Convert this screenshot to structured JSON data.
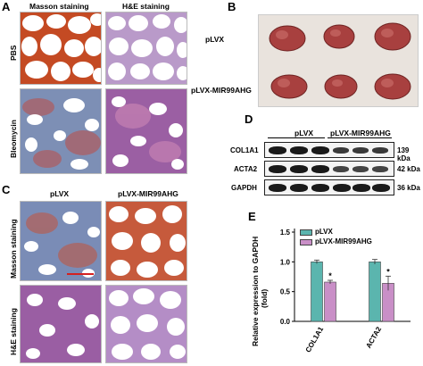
{
  "panels": {
    "A": {
      "letter": "A",
      "col_labels": [
        "Masson staining",
        "H&E staining"
      ],
      "row_labels": [
        "PBS",
        "Bleomycin"
      ]
    },
    "B": {
      "letter": "B",
      "row_labels": [
        "pLVX",
        "pLVX-MIR99AHG"
      ]
    },
    "C": {
      "letter": "C",
      "col_labels": [
        "pLVX",
        "pLVX-MIR99AHG"
      ],
      "row_labels": [
        "Masson staining",
        "H&E staining"
      ]
    },
    "D": {
      "letter": "D",
      "group_labels": [
        "pLVX",
        "pLVX-MIR99AHG"
      ],
      "proteins": [
        "COL1A1",
        "ACTA2",
        "GAPDH"
      ],
      "sizes": [
        "139 kDa",
        "42 kDa",
        "36 kDa"
      ]
    },
    "E": {
      "letter": "E",
      "ylabel_line1": "Relative expression to GAPDH",
      "ylabel_line2": "(fold)"
    }
  },
  "chart_data": {
    "type": "bar",
    "categories": [
      "COL1A1",
      "ACTA2"
    ],
    "series": [
      {
        "name": "pLVX",
        "values": [
          1.0,
          1.0
        ],
        "errors": [
          0.03,
          0.04
        ],
        "color": "#5bb5ae"
      },
      {
        "name": "pLVX-MIR99AHG",
        "values": [
          0.66,
          0.64
        ],
        "errors": [
          0.03,
          0.12
        ],
        "color": "#c98fc7"
      }
    ],
    "significance": [
      "*",
      "*"
    ],
    "ylabel": "Relative expression to GAPDH (fold)",
    "ylim": [
      0,
      1.5
    ],
    "yticks": [
      "0.0",
      "0.5",
      "1.0",
      "1.5"
    ],
    "legend_position": "top-left",
    "grid": false
  }
}
